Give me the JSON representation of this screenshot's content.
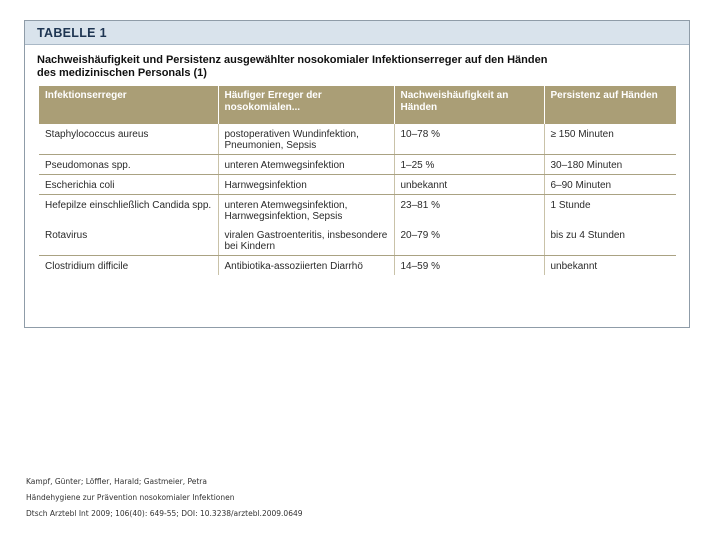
{
  "figure": {
    "label": "TABELLE 1",
    "title_line1": "Nachweishäufigkeit und Persistenz ausgewählter nosokomialer Infektionserreger auf den Händen",
    "title_line2": "des medizinischen Personals (1)"
  },
  "table": {
    "headers": [
      "Infektionserreger",
      "Häufiger Erreger der nosokomialen...",
      "Nachweishäufigkeit an Händen",
      "Persistenz auf Händen"
    ],
    "rows": [
      [
        "Staphylococcus aureus",
        "postoperativen Wundinfektion, Pneumonien, Sepsis",
        "10–78 %",
        "≥ 150 Minuten"
      ],
      [
        "Pseudomonas spp.",
        "unteren Atemwegsinfektion",
        "1–25 %",
        "30–180 Minuten"
      ],
      [
        "Escherichia coli",
        "Harnwegsinfektion",
        "unbekannt",
        "6–90 Minuten"
      ],
      [
        "Hefepilze einschließlich Candida spp.",
        "unteren Atemwegsinfektion, Harnwegsinfektion, Sepsis",
        "23–81 %",
        "1 Stunde"
      ],
      [
        "Rotavirus",
        "viralen Gastroenteritis, insbesondere bei Kindern",
        "20–79 %",
        "bis zu 4 Stunden"
      ],
      [
        "Clostridium difficile",
        "Antibiotika-assoziierten Diarrhö",
        "14–59 %",
        "unbekannt"
      ]
    ]
  },
  "citation": {
    "authors": "Kampf, Günter; Löffler, Harald; Gastmeier, Petra",
    "article_title": "Händehygiene zur Prävention nosokomialer Infektionen",
    "source": "Dtsch Arztebl Int 2009; 106(40): 649-55; DOI: 10.3238/arztebl.2009.0649"
  }
}
